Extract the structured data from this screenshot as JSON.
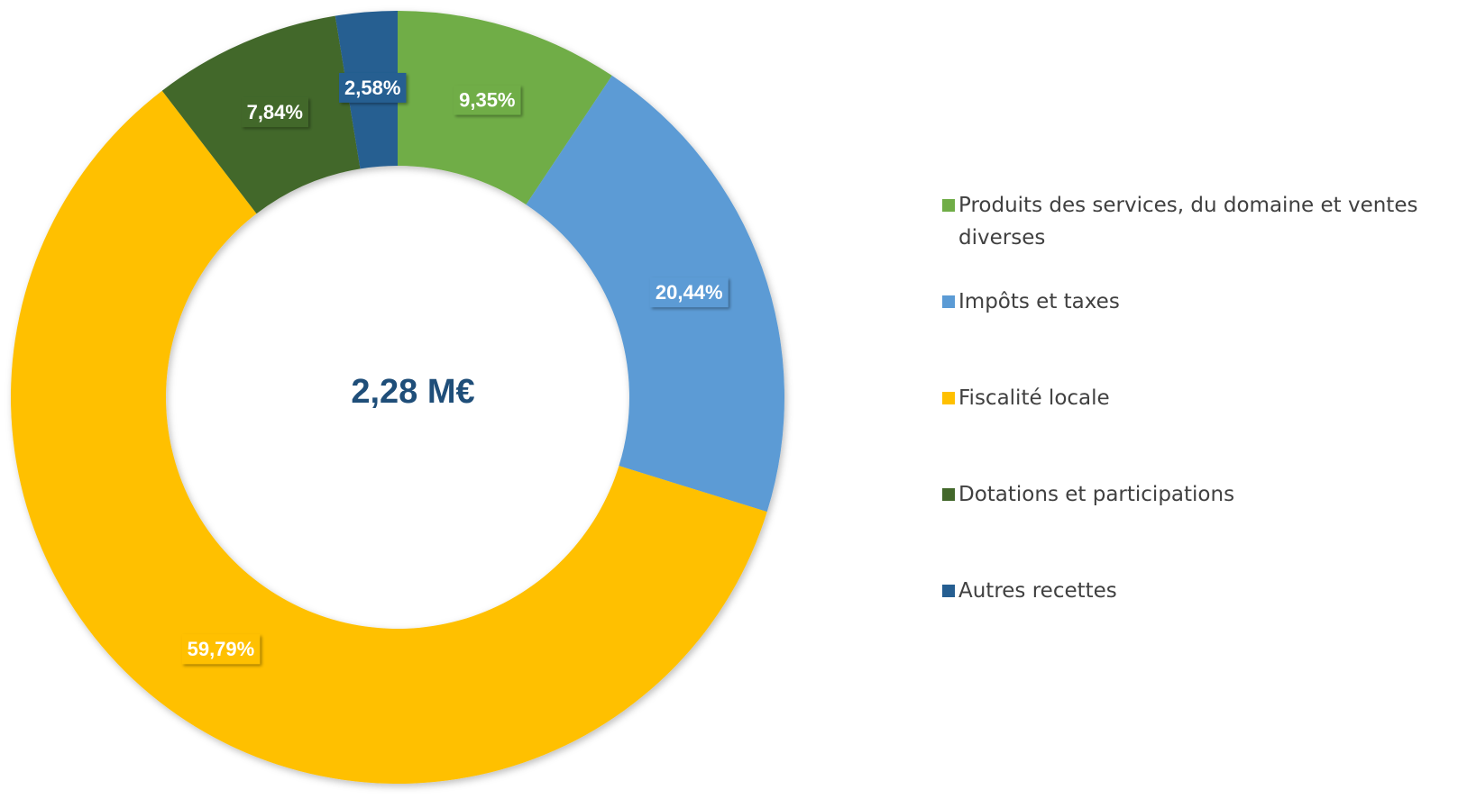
{
  "chart_data": {
    "type": "donut",
    "center_label": "2,28 M€",
    "categories": [
      "Produits des services, du domaine et ventes diverses",
      "Impôts et taxes",
      "Fiscalité locale",
      "Dotations et participations",
      "Autres recettes"
    ],
    "values": [
      9.35,
      20.44,
      59.79,
      7.84,
      2.58
    ],
    "value_labels": [
      "9,35%",
      "20,44%",
      "59,79%",
      "7,84%",
      "2,58%"
    ],
    "colors": [
      "#70ad47",
      "#5b9bd5",
      "#ffc000",
      "#43682b",
      "#255e91"
    ],
    "legend": "right"
  }
}
